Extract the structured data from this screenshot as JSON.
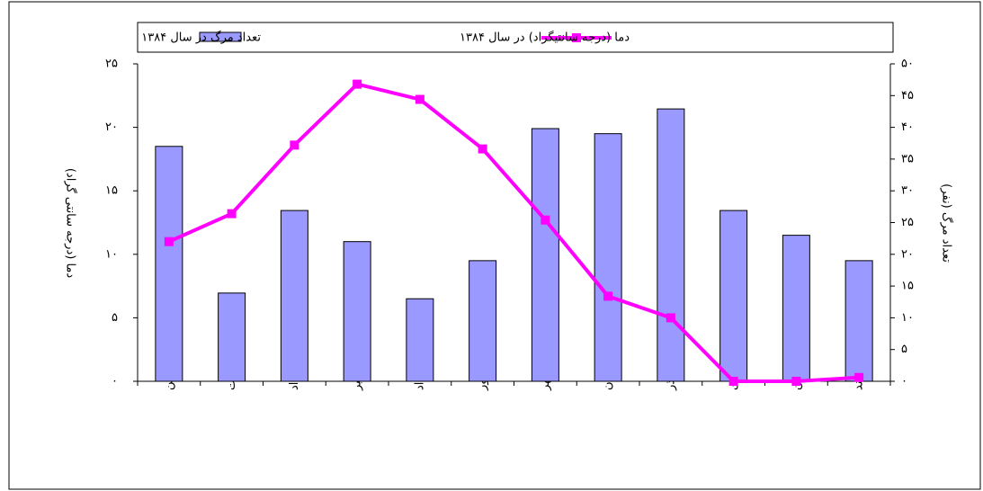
{
  "chart_data": {
    "type": "bar-line",
    "y_label": "دما (درجه سانتی گراد)",
    "y2_label": "تعداد مرگ (نفر)",
    "categories": [
      "فروردین",
      "اردیبهشت",
      "خرداد",
      "تیر",
      "مرداد",
      "شهریور",
      "مهر",
      "آبان",
      "آذر",
      "دی",
      "بهمن",
      "اسفند"
    ],
    "series": [
      {
        "name": "تعداد مرگ در سال ۱۳۸۴",
        "type": "bar",
        "axis": "y2",
        "color": "#9999ff",
        "values": [
          37,
          13.9,
          26.9,
          22,
          13,
          19,
          39.8,
          39,
          42.9,
          26.9,
          23,
          19
        ]
      },
      {
        "name": "دما (درجه سانتیگراد) در سال ۱۳۸۴",
        "type": "line",
        "axis": "y",
        "color": "#ff00ff",
        "values": [
          11,
          13.2,
          18.6,
          23.4,
          22.2,
          18.3,
          12.7,
          6.7,
          5,
          0,
          0,
          0.3
        ]
      }
    ],
    "ylim": [
      0,
      25
    ],
    "yticks": [
      {
        "value": 0,
        "label": "۰"
      },
      {
        "value": 5,
        "label": "۵"
      },
      {
        "value": 10,
        "label": "۱۰"
      },
      {
        "value": 15,
        "label": "۱۵"
      },
      {
        "value": 20,
        "label": "۲۰"
      },
      {
        "value": 25,
        "label": "۲۵"
      }
    ],
    "y2lim": [
      0,
      50
    ],
    "y2ticks": [
      {
        "value": 0,
        "label": "۰"
      },
      {
        "value": 5,
        "label": "۵"
      },
      {
        "value": 10,
        "label": "۱۰"
      },
      {
        "value": 15,
        "label": "۱۵"
      },
      {
        "value": 20,
        "label": "۲۰"
      },
      {
        "value": 25,
        "label": "۲۵"
      },
      {
        "value": 30,
        "label": "۳۰"
      },
      {
        "value": 35,
        "label": "۳۵"
      },
      {
        "value": 40,
        "label": "۴۰"
      },
      {
        "value": 45,
        "label": "۴۵"
      },
      {
        "value": 50,
        "label": "۵۰"
      }
    ]
  }
}
